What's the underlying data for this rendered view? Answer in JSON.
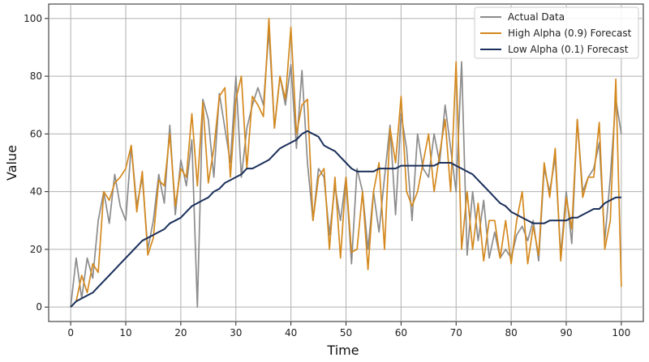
{
  "chart_data": {
    "type": "line",
    "xlabel": "Time",
    "ylabel": "Value",
    "xlim": [
      -4,
      104
    ],
    "ylim": [
      -5,
      105
    ],
    "xticks": [
      0,
      10,
      20,
      30,
      40,
      50,
      60,
      70,
      80,
      90,
      100
    ],
    "yticks": [
      0,
      20,
      40,
      60,
      80,
      100
    ],
    "grid": true,
    "legend_position": "top-right",
    "x": [
      0,
      1,
      2,
      3,
      4,
      5,
      6,
      7,
      8,
      9,
      10,
      11,
      12,
      13,
      14,
      15,
      16,
      17,
      18,
      19,
      20,
      21,
      22,
      23,
      24,
      25,
      26,
      27,
      28,
      29,
      30,
      31,
      32,
      33,
      34,
      35,
      36,
      37,
      38,
      39,
      40,
      41,
      42,
      43,
      44,
      45,
      46,
      47,
      48,
      49,
      50,
      51,
      52,
      53,
      54,
      55,
      56,
      57,
      58,
      59,
      60,
      61,
      62,
      63,
      64,
      65,
      66,
      67,
      68,
      69,
      70,
      71,
      72,
      73,
      74,
      75,
      76,
      77,
      78,
      79,
      80,
      81,
      82,
      83,
      84,
      85,
      86,
      87,
      88,
      89,
      90,
      91,
      92,
      93,
      94,
      95,
      96,
      97,
      98,
      99,
      100
    ],
    "series": [
      {
        "name": "Actual Data",
        "color": "#8c8c8c",
        "values": [
          0,
          17,
          3,
          17,
          10,
          30,
          40,
          29,
          46,
          35,
          30,
          56,
          35,
          45,
          20,
          30,
          46,
          36,
          63,
          32,
          51,
          42,
          58,
          0,
          72,
          65,
          45,
          74,
          62,
          50,
          80,
          45,
          62,
          70,
          76,
          70,
          96,
          62,
          80,
          70,
          84,
          55,
          82,
          50,
          30,
          48,
          45,
          25,
          42,
          30,
          45,
          15,
          48,
          40,
          20,
          40,
          26,
          45,
          63,
          32,
          67,
          55,
          30,
          60,
          48,
          45,
          60,
          50,
          70,
          55,
          40,
          85,
          18,
          40,
          23,
          37,
          17,
          26,
          17,
          20,
          17,
          25,
          28,
          23,
          30,
          16,
          48,
          40,
          52,
          18,
          40,
          22,
          65,
          40,
          45,
          48,
          57,
          23,
          45,
          72,
          60
        ]
      },
      {
        "name": "High Alpha (0.9) Forecast",
        "color": "#d4891e",
        "values": [
          0,
          2,
          11,
          5,
          15,
          12,
          40,
          37,
          43,
          45,
          48,
          56,
          33,
          47,
          18,
          24,
          44,
          42,
          60,
          35,
          48,
          45,
          67,
          42,
          71,
          43,
          55,
          73,
          76,
          45,
          72,
          80,
          48,
          73,
          70,
          66,
          100,
          62,
          80,
          72,
          97,
          60,
          70,
          72,
          30,
          45,
          48,
          20,
          45,
          17,
          45,
          19,
          20,
          40,
          13,
          40,
          50,
          20,
          62,
          50,
          73,
          40,
          35,
          40,
          50,
          60,
          40,
          53,
          65,
          40,
          85,
          20,
          40,
          20,
          36,
          16,
          30,
          30,
          17,
          30,
          15,
          30,
          40,
          15,
          28,
          18,
          50,
          38,
          55,
          16,
          38,
          27,
          65,
          38,
          45,
          45,
          64,
          20,
          30,
          79,
          7
        ]
      },
      {
        "name": "Low Alpha (0.1) Forecast",
        "color": "#1a2f5a",
        "values": [
          0,
          2,
          3,
          4,
          5,
          7,
          9,
          11,
          13,
          15,
          17,
          19,
          21,
          23,
          24,
          25,
          26,
          27,
          29,
          30,
          31,
          33,
          35,
          36,
          37,
          38,
          40,
          41,
          43,
          44,
          45,
          46,
          48,
          48,
          49,
          50,
          51,
          53,
          55,
          56,
          57,
          58,
          60,
          61,
          60,
          59,
          56,
          55,
          54,
          52,
          50,
          48,
          47,
          47,
          47,
          47,
          48,
          48,
          48,
          48,
          49,
          49,
          49,
          49,
          49,
          49,
          49,
          50,
          50,
          50,
          49,
          48,
          47,
          46,
          44,
          42,
          40,
          38,
          36,
          35,
          33,
          32,
          31,
          30,
          29,
          29,
          29,
          30,
          30,
          30,
          30,
          31,
          31,
          32,
          33,
          34,
          34,
          36,
          37,
          38,
          38
        ]
      }
    ]
  }
}
